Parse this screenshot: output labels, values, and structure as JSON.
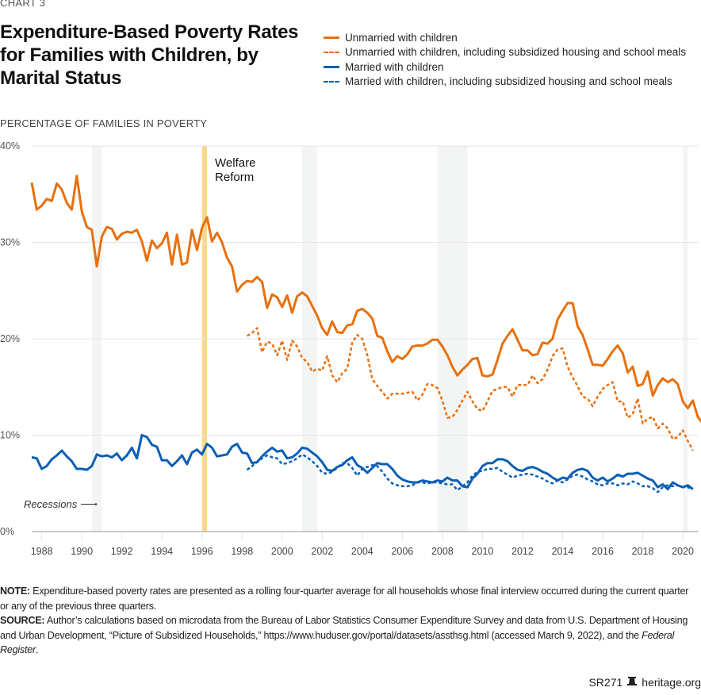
{
  "header": {
    "kicker": "CHART 3",
    "title": "Expenditure-Based Poverty Rates for Families with Children, by Marital Status"
  },
  "legend": [
    {
      "label": "Unmarried with children",
      "color": "#E8700F",
      "style": "solid"
    },
    {
      "label": "Unmarried with children, including subsidized housing and school meals",
      "color": "#E8700F",
      "style": "dashed"
    },
    {
      "label": "Married with children",
      "color": "#0B5FB4",
      "style": "solid"
    },
    {
      "label": "Married with children, including subsidized housing and school meals",
      "color": "#0B5FB4",
      "style": "dashed"
    }
  ],
  "chart_data": {
    "type": "line",
    "title": "Expenditure-Based Poverty Rates for Families with Children, by Marital Status",
    "ylabel": "PERCENTAGE OF FAMILIES IN POVERTY",
    "xlabel": "",
    "xlim": [
      1987.5,
      2020.75
    ],
    "ylim": [
      0,
      40
    ],
    "yticks": [
      0,
      10,
      20,
      30,
      40
    ],
    "ytick_labels": [
      "0%",
      "10%",
      "20%",
      "30%",
      "40%"
    ],
    "xticks": [
      1988,
      1990,
      1992,
      1994,
      1996,
      1998,
      2000,
      2002,
      2004,
      2006,
      2008,
      2010,
      2012,
      2014,
      2016,
      2018,
      2020
    ],
    "grid": "horizontal",
    "legend_position": "top-right",
    "recessions": [
      [
        1990.5,
        1991.0
      ],
      [
        2001.0,
        2001.75
      ],
      [
        2007.75,
        2009.25
      ],
      [
        2020.0,
        2020.25
      ]
    ],
    "annotations": [
      {
        "text": "Welfare Reform",
        "x": 1996.0,
        "band": [
          1996.0,
          1996.25
        ],
        "color": "#F6D98E"
      },
      {
        "text": "Recessions",
        "arrow": true
      }
    ],
    "series": [
      {
        "name": "Unmarried with children",
        "color": "#E8700F",
        "style": "solid",
        "start": 1987.5,
        "step": 0.25,
        "values": [
          36.2,
          33.4,
          33.8,
          34.5,
          34.3,
          36.1,
          35.5,
          34.1,
          33.4,
          36.9,
          33.2,
          31.6,
          31.3,
          27.5,
          30.6,
          31.6,
          31.4,
          30.3,
          30.9,
          31.1,
          31.0,
          31.3,
          30.1,
          28.1,
          30.2,
          29.4,
          29.9,
          31.0,
          27.7,
          30.8,
          27.7,
          27.9,
          31.3,
          29.2,
          31.5,
          32.6,
          30.1,
          31.0,
          30.0,
          28.4,
          27.5,
          24.9,
          25.6,
          26.0,
          25.9,
          26.4,
          25.9,
          23.2,
          24.6,
          24.3,
          23.3,
          24.5,
          22.7,
          24.4,
          24.8,
          24.4,
          23.4,
          22.4,
          21.1,
          20.4,
          21.8,
          20.7,
          20.6,
          21.4,
          21.5,
          22.9,
          23.1,
          22.7,
          22.1,
          20.3,
          20.1,
          18.7,
          17.6,
          18.2,
          17.9,
          18.4,
          19.2,
          19.3,
          19.3,
          19.5,
          19.9,
          19.9,
          19.2,
          18.3,
          17.1,
          16.2,
          16.8,
          17.3,
          17.9,
          18.0,
          16.2,
          16.1,
          16.3,
          17.8,
          19.5,
          20.3,
          21.0,
          19.9,
          18.8,
          18.8,
          18.3,
          18.4,
          19.6,
          19.5,
          20.0,
          22.0,
          22.9,
          23.7,
          23.7,
          21.3,
          20.4,
          18.9,
          17.3,
          17.3,
          17.2,
          17.9,
          18.7,
          19.3,
          18.5,
          16.5,
          17.1,
          15.1,
          15.3,
          16.6,
          14.1,
          15.2,
          15.9,
          15.5,
          15.8,
          15.3,
          13.5,
          12.8,
          13.6,
          11.9,
          11.2
        ]
      },
      {
        "name": "Unmarried with children, including subsidized housing and school meals",
        "color": "#E8700F",
        "style": "dashed",
        "start": 1998.25,
        "step": 0.25,
        "values": [
          20.3,
          20.6,
          21.1,
          18.6,
          19.7,
          19.5,
          18.3,
          19.8,
          17.8,
          19.8,
          19.2,
          18.0,
          17.6,
          16.6,
          16.9,
          16.7,
          18.2,
          16.2,
          15.5,
          16.4,
          16.9,
          19.6,
          20.4,
          20.0,
          18.3,
          15.8,
          15.1,
          14.5,
          13.8,
          14.3,
          14.3,
          14.3,
          14.4,
          14.5,
          13.6,
          14.2,
          15.3,
          15.2,
          14.9,
          13.6,
          11.8,
          11.9,
          12.6,
          13.6,
          14.5,
          13.5,
          12.7,
          12.5,
          13.5,
          14.6,
          14.8,
          15.0,
          15.0,
          14.0,
          15.2,
          15.2,
          15.2,
          16.2,
          15.4,
          15.8,
          16.8,
          18.2,
          18.9,
          19.0,
          17.1,
          16.0,
          15.1,
          14.0,
          13.8,
          13.0,
          14.0,
          14.8,
          15.2,
          15.5,
          13.5,
          13.5,
          11.8,
          12.2,
          13.8,
          11.2,
          11.7,
          11.9,
          10.7,
          11.2,
          10.7,
          9.6,
          9.8,
          10.5,
          9.4,
          8.4
        ]
      },
      {
        "name": "Married with children",
        "color": "#0B5FB4",
        "style": "solid",
        "start": 1987.5,
        "step": 0.25,
        "values": [
          7.7,
          7.6,
          6.5,
          6.8,
          7.5,
          7.9,
          8.4,
          7.8,
          7.3,
          6.5,
          6.5,
          6.4,
          6.8,
          8.0,
          7.8,
          7.9,
          7.7,
          8.1,
          7.4,
          7.9,
          8.7,
          7.6,
          10.0,
          9.8,
          9.0,
          8.8,
          7.4,
          7.4,
          6.8,
          7.3,
          7.9,
          7.0,
          8.2,
          8.5,
          8.0,
          9.1,
          8.7,
          7.8,
          7.9,
          8.0,
          8.8,
          9.1,
          8.2,
          8.1,
          7.1,
          7.2,
          7.8,
          8.3,
          8.7,
          8.3,
          8.4,
          7.6,
          7.7,
          8.1,
          8.7,
          8.6,
          8.2,
          7.8,
          7.2,
          6.4,
          6.3,
          6.7,
          6.9,
          7.4,
          7.7,
          6.9,
          6.6,
          6.1,
          6.6,
          7.1,
          7.0,
          7.0,
          6.5,
          5.8,
          5.4,
          5.2,
          5.1,
          5.1,
          5.3,
          5.2,
          5.1,
          5.3,
          5.2,
          5.6,
          5.3,
          5.3,
          4.7,
          4.6,
          5.5,
          6.0,
          6.8,
          7.1,
          7.1,
          7.5,
          7.5,
          7.3,
          6.8,
          6.4,
          6.3,
          6.6,
          6.7,
          6.5,
          6.2,
          6.0,
          5.6,
          5.3,
          5.6,
          5.5,
          6.1,
          6.4,
          6.5,
          6.3,
          5.6,
          5.3,
          5.6,
          5.2,
          5.5,
          5.9,
          5.7,
          6.0,
          6.0,
          6.1,
          5.8,
          5.5,
          5.3,
          4.6,
          4.9,
          4.4,
          5.1,
          4.8,
          4.6,
          4.8,
          4.4
        ]
      },
      {
        "name": "Married with children, including subsidized housing and school meals",
        "color": "#0B5FB4",
        "style": "dashed",
        "start": 1998.25,
        "step": 0.25,
        "values": [
          6.4,
          6.8,
          7.2,
          7.6,
          7.9,
          7.7,
          7.6,
          7.0,
          7.1,
          7.3,
          7.6,
          8.0,
          7.7,
          7.3,
          6.8,
          6.1,
          6.0,
          6.2,
          6.6,
          7.1,
          7.1,
          6.6,
          5.8,
          6.5,
          6.7,
          6.9,
          6.8,
          6.2,
          5.5,
          5.0,
          4.8,
          4.7,
          4.7,
          4.8,
          5.1,
          5.1,
          5.0,
          5.1,
          5.1,
          5.0,
          4.9,
          4.9,
          4.3,
          4.7,
          5.1,
          5.8,
          6.2,
          6.3,
          6.5,
          6.5,
          6.6,
          6.2,
          5.9,
          5.6,
          5.8,
          5.9,
          6.0,
          5.9,
          5.7,
          5.5,
          5.2,
          5.0,
          5.3,
          5.1,
          5.4,
          5.8,
          5.9,
          5.7,
          5.4,
          5.2,
          4.9,
          4.8,
          5.0,
          5.0,
          4.8,
          5.0,
          4.9,
          5.2,
          5.0,
          4.7,
          4.7,
          4.5,
          4.1,
          4.6,
          4.8,
          4.7,
          4.8,
          4.6,
          4.6,
          4.4
        ]
      }
    ]
  },
  "notes": {
    "note_label": "NOTE:",
    "note_text": " Expenditure-based poverty rates are presented as a rolling four-quarter average for all households whose final interview occurred during the current quarter or any of the previous three quarters.",
    "source_label": "SOURCE:",
    "source_text": " Author’s calculations based on microdata from the Bureau of Labor Statistics Consumer Expenditure Survey and data from U.S. Department of Housing and Urban Development, “Picture of Subsidized Households,” https://www.huduser.gov/portal/datasets/assthsg.html (accessed March 9, 2022), and the ",
    "source_italic": "Federal Register",
    "source_end": "."
  },
  "footer": {
    "report_id": "SR271",
    "icon": "liberty-bell-icon",
    "site": "heritage.org"
  }
}
